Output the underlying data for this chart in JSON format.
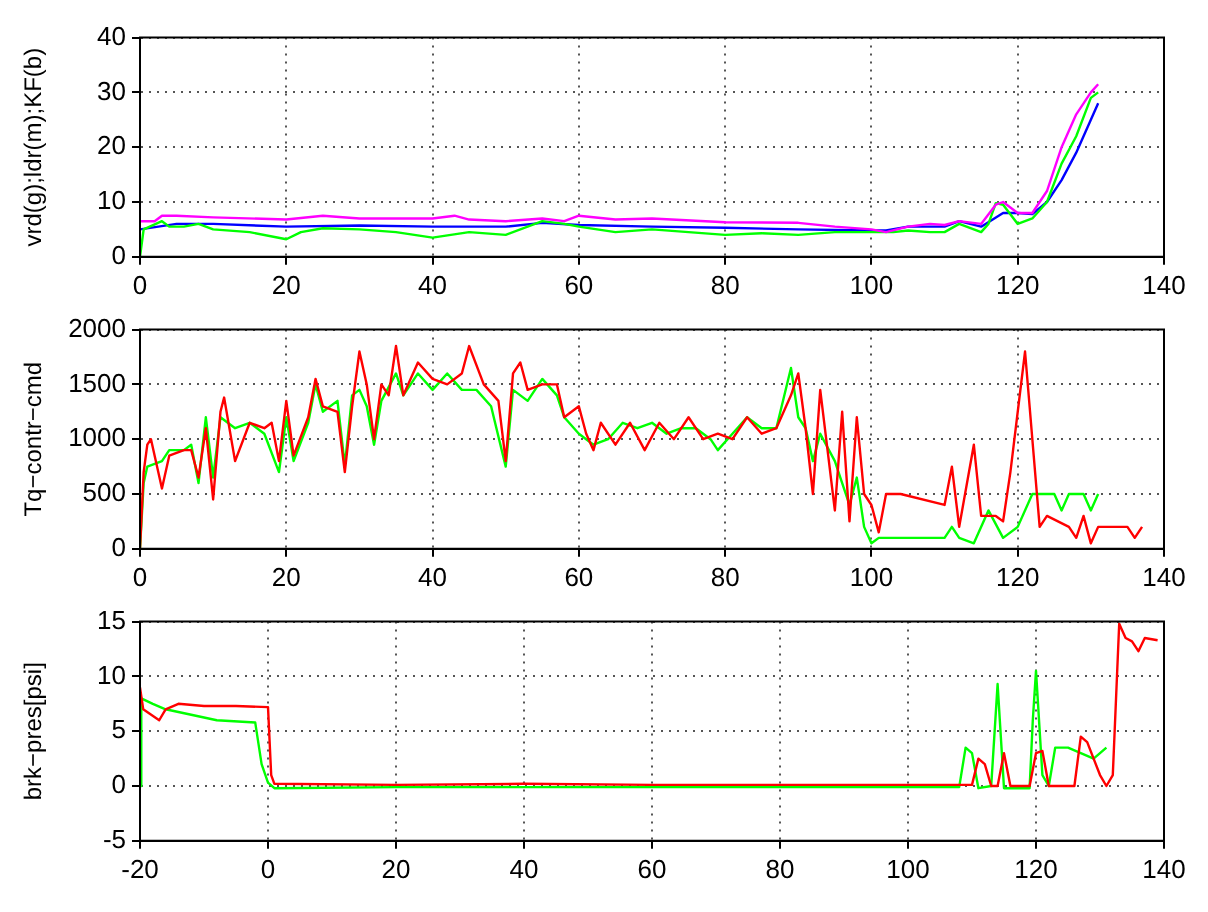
{
  "chart_data": [
    {
      "type": "line",
      "ylabel": "vrd(g);ldr(m);KF(b)",
      "xlim": [
        0,
        140
      ],
      "xticks": [
        0,
        20,
        40,
        60,
        80,
        100,
        120,
        140
      ],
      "ylim": [
        0,
        40
      ],
      "yticks": [
        0,
        10,
        20,
        30,
        40
      ],
      "grid": true,
      "legend": false,
      "marker": "none",
      "line_style": "solid",
      "series": [
        {
          "color": "#ff00ff",
          "x": [
            0,
            2,
            3,
            5,
            10,
            20,
            25,
            30,
            40,
            43,
            45,
            50,
            55,
            58,
            60,
            65,
            70,
            80,
            90,
            95,
            100,
            102,
            105,
            108,
            110,
            112,
            115,
            117,
            118,
            120,
            122,
            124,
            126,
            128,
            130,
            131
          ],
          "values": [
            6.5,
            6.5,
            7.5,
            7.5,
            7.2,
            6.8,
            7.5,
            7,
            7,
            7.5,
            6.8,
            6.5,
            7,
            6.5,
            7.5,
            6.8,
            7,
            6.3,
            6.2,
            5.5,
            5,
            4.5,
            5.5,
            6,
            5.8,
            6.5,
            6,
            9.5,
            10,
            8,
            8,
            12,
            20,
            26,
            30,
            31.5
          ]
        },
        {
          "color": "#00ff00",
          "x": [
            0,
            0.5,
            3,
            4,
            6,
            8,
            10,
            15,
            20,
            22,
            25,
            30,
            35,
            40,
            45,
            50,
            55,
            58,
            60,
            65,
            70,
            75,
            80,
            85,
            90,
            95,
            100,
            103,
            105,
            108,
            110,
            112,
            115,
            116,
            117,
            118,
            120,
            122,
            124,
            126,
            128,
            130,
            131
          ],
          "values": [
            0,
            5,
            6.5,
            5.5,
            5.5,
            6,
            5,
            4.5,
            3.2,
            4.5,
            5.2,
            5,
            4.5,
            3.5,
            4.5,
            4,
            6.5,
            6,
            5.5,
            4.5,
            5,
            4.5,
            4,
            4.3,
            4,
            4.5,
            4.5,
            4.5,
            4.8,
            4.5,
            4.5,
            6,
            4.5,
            6,
            9.8,
            9.5,
            6,
            7,
            10,
            17,
            22,
            29,
            30
          ]
        },
        {
          "color": "#0000ff",
          "x": [
            0,
            5,
            10,
            20,
            30,
            40,
            50,
            55,
            60,
            70,
            80,
            90,
            100,
            102,
            105,
            110,
            112,
            115,
            118,
            120,
            122,
            124,
            126,
            128,
            130,
            131
          ],
          "values": [
            5,
            6,
            6,
            5.5,
            5.7,
            5.5,
            5.5,
            6.2,
            5.8,
            5.5,
            5.3,
            5,
            4.8,
            4.8,
            5.5,
            5.5,
            6.5,
            5.5,
            8,
            8,
            7.8,
            10,
            14,
            19,
            25,
            28
          ]
        }
      ]
    },
    {
      "type": "line",
      "ylabel": "Tq−contr−cmd",
      "xlim": [
        0,
        140
      ],
      "xticks": [
        0,
        20,
        40,
        60,
        80,
        100,
        120,
        140
      ],
      "ylim": [
        0,
        2000
      ],
      "yticks": [
        0,
        500,
        1000,
        1500,
        2000
      ],
      "grid": true,
      "legend": false,
      "marker": "none",
      "line_style": "solid",
      "series": [
        {
          "color": "#ff0000",
          "x": [
            0,
            0.5,
            1,
            1.5,
            3,
            4,
            6,
            7,
            8,
            9,
            10,
            11,
            11.5,
            13,
            15,
            17,
            18,
            19,
            20,
            21,
            23,
            24,
            25,
            27,
            28,
            29,
            30,
            31,
            32,
            33,
            34,
            35,
            36,
            38,
            40,
            42,
            44,
            45,
            47,
            49,
            50,
            51,
            52,
            53,
            55,
            57,
            58,
            60,
            61,
            62,
            63,
            65,
            67,
            69,
            71,
            73,
            75,
            77,
            79,
            81,
            83,
            85,
            87,
            89,
            90,
            91,
            92,
            93,
            94,
            95,
            96,
            97,
            98,
            99,
            100,
            101,
            102,
            104,
            110,
            111,
            112,
            114,
            115,
            117,
            118,
            119,
            121,
            123,
            124,
            127,
            128,
            129,
            130,
            131,
            135,
            136,
            137
          ],
          "values": [
            0,
            700,
            950,
            1000,
            550,
            850,
            900,
            900,
            650,
            1100,
            450,
            1250,
            1380,
            800,
            1150,
            1100,
            1150,
            800,
            1350,
            850,
            1200,
            1550,
            1300,
            1250,
            700,
            1300,
            1800,
            1500,
            1000,
            1500,
            1400,
            1850,
            1400,
            1700,
            1550,
            1500,
            1600,
            1850,
            1500,
            1350,
            800,
            1600,
            1700,
            1450,
            1500,
            1500,
            1200,
            1300,
            1050,
            900,
            1150,
            950,
            1150,
            900,
            1150,
            1000,
            1200,
            1000,
            1050,
            1000,
            1200,
            1050,
            1100,
            1400,
            1600,
            1100,
            500,
            1450,
            900,
            350,
            1250,
            250,
            1200,
            500,
            400,
            150,
            500,
            500,
            400,
            750,
            200,
            950,
            300,
            300,
            250,
            700,
            1800,
            200,
            300,
            200,
            100,
            300,
            50,
            200,
            200,
            100,
            200
          ]
        },
        {
          "color": "#00ff00",
          "x": [
            0,
            0.5,
            1,
            3,
            4,
            6,
            7,
            8,
            9,
            10,
            11,
            13,
            15,
            17,
            19,
            20,
            21,
            23,
            24,
            25,
            27,
            28,
            29,
            30,
            31,
            32,
            33,
            35,
            36,
            38,
            40,
            42,
            44,
            46,
            48,
            50,
            51,
            53,
            55,
            57,
            58,
            60,
            62,
            64,
            66,
            68,
            70,
            72,
            74,
            76,
            78,
            79,
            81,
            83,
            85,
            87,
            89,
            90,
            91,
            92,
            93,
            95,
            96,
            97,
            98,
            99,
            100,
            101,
            110,
            111,
            112,
            114,
            116,
            118,
            120,
            122,
            125,
            126,
            127,
            129,
            130,
            131
          ],
          "values": [
            0,
            600,
            750,
            800,
            900,
            900,
            950,
            600,
            1200,
            650,
            1200,
            1100,
            1150,
            1050,
            700,
            1200,
            800,
            1150,
            1500,
            1250,
            1350,
            760,
            1400,
            1450,
            1300,
            950,
            1350,
            1600,
            1400,
            1600,
            1450,
            1600,
            1450,
            1450,
            1300,
            750,
            1450,
            1350,
            1550,
            1400,
            1200,
            1050,
            950,
            1000,
            1150,
            1100,
            1150,
            1050,
            1100,
            1100,
            1000,
            900,
            1050,
            1200,
            1100,
            1100,
            1650,
            1200,
            1100,
            800,
            1050,
            800,
            600,
            400,
            650,
            200,
            50,
            100,
            100,
            200,
            100,
            50,
            350,
            100,
            200,
            500,
            500,
            350,
            500,
            500,
            350,
            500
          ]
        }
      ]
    },
    {
      "type": "line",
      "ylabel": "brk−pres[psi]",
      "xlim": [
        -20,
        140
      ],
      "xticks": [
        -20,
        0,
        20,
        40,
        60,
        80,
        100,
        120,
        140
      ],
      "ylim": [
        -5,
        15
      ],
      "yticks": [
        -5,
        0,
        5,
        10,
        15
      ],
      "grid": true,
      "legend": false,
      "marker": "none",
      "line_style": "solid",
      "series": [
        {
          "color": "#ff0000",
          "x": [
            -20,
            -19.5,
            -17,
            -16,
            -14,
            -10,
            -5,
            0,
            0.5,
            1,
            20,
            40,
            60,
            80,
            100,
            110,
            111,
            112,
            113,
            114,
            115,
            116,
            119,
            120,
            121,
            122,
            126,
            127,
            128,
            130,
            131,
            132,
            133,
            134,
            135,
            136,
            137,
            139
          ],
          "values": [
            9,
            7,
            6,
            7,
            7.5,
            7.3,
            7.3,
            7.2,
            1,
            0.2,
            0.1,
            0.2,
            0.1,
            0.1,
            0.1,
            0.1,
            2.5,
            2,
            0,
            0,
            3,
            0,
            0,
            3,
            3.2,
            0,
            0,
            4.5,
            4,
            1,
            0,
            1,
            14.8,
            13.5,
            13.2,
            12.3,
            13.5,
            13.3
          ]
        },
        {
          "color": "#00ff00",
          "x": [
            -20,
            -19.8,
            -18,
            -16,
            -12,
            -8,
            -2,
            -1,
            0,
            1,
            20,
            40,
            60,
            80,
            100,
            108,
            109,
            110,
            111,
            113,
            114,
            115,
            119,
            119.5,
            120,
            121,
            122,
            123,
            125,
            127,
            129,
            131
          ],
          "values": [
            0,
            8,
            7.5,
            7,
            6.5,
            6,
            5.8,
            2,
            0.3,
            -0.2,
            -0.1,
            -0.1,
            -0.1,
            -0.1,
            -0.1,
            -0.1,
            3.5,
            3,
            -0.2,
            0,
            9.3,
            -0.2,
            -0.2,
            6,
            10.5,
            1,
            0,
            3.5,
            3.5,
            3,
            2.5,
            3.5
          ]
        }
      ]
    }
  ]
}
